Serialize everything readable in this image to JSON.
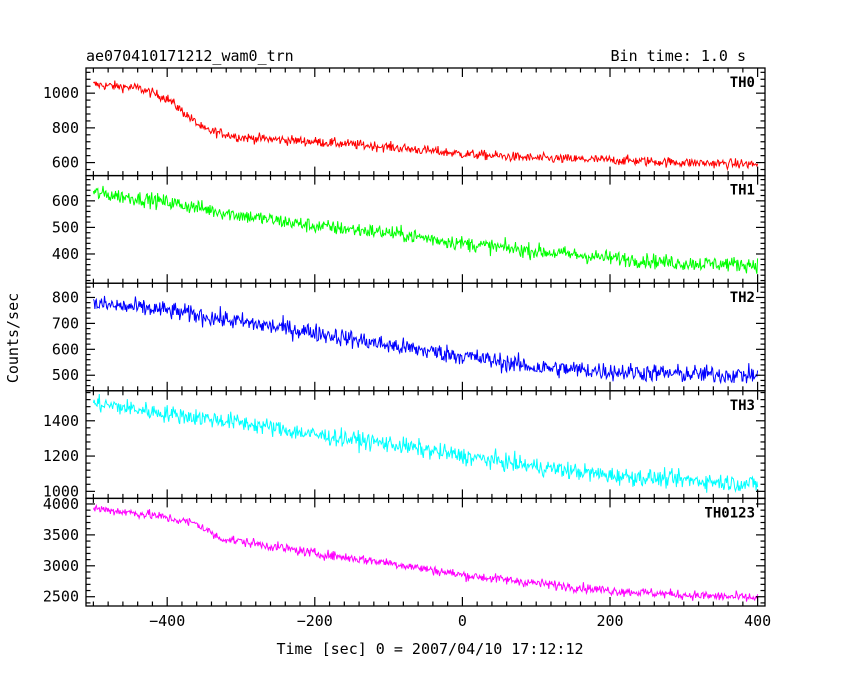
{
  "header": {
    "title": "ae070410171212_wam0_trn",
    "bin_time": "Bin time: 1.0 s"
  },
  "chart_data": {
    "type": "line",
    "xlabel": "Time [sec] 0 = 2007/04/10 17:12:12",
    "ylabel": "Counts/sec",
    "xlim": [
      -510,
      410
    ],
    "x_ticks": [
      -400,
      -200,
      0,
      200,
      400
    ],
    "x_tick_labels": [
      "−400",
      "−200",
      "0",
      "200",
      "400"
    ],
    "x_range": [
      -500,
      400
    ],
    "bin_time_s": 1.0,
    "panels": [
      {
        "name": "TH0",
        "color": "#ff0000",
        "ylim": [
          525,
          1145
        ],
        "y_ticks": [
          600,
          800,
          1000
        ],
        "noise": 20,
        "trend": [
          [
            -500,
            1050
          ],
          [
            -440,
            1030
          ],
          [
            -400,
            970
          ],
          [
            -350,
            790
          ],
          [
            -300,
            745
          ],
          [
            -200,
            720
          ],
          [
            -100,
            690
          ],
          [
            0,
            650
          ],
          [
            100,
            625
          ],
          [
            200,
            615
          ],
          [
            300,
            600
          ],
          [
            400,
            590
          ]
        ]
      },
      {
        "name": "TH1",
        "color": "#00ff00",
        "ylim": [
          290,
          695
        ],
        "y_ticks": [
          400,
          500,
          600
        ],
        "noise": 20,
        "trend": [
          [
            -500,
            630
          ],
          [
            -400,
            595
          ],
          [
            -300,
            545
          ],
          [
            -200,
            505
          ],
          [
            -100,
            480
          ],
          [
            0,
            440
          ],
          [
            100,
            410
          ],
          [
            200,
            385
          ],
          [
            300,
            365
          ],
          [
            400,
            360
          ]
        ]
      },
      {
        "name": "TH2",
        "color": "#0000ff",
        "ylim": [
          440,
          855
        ],
        "y_ticks": [
          500,
          600,
          700,
          800
        ],
        "noise": 25,
        "trend": [
          [
            -500,
            775
          ],
          [
            -400,
            750
          ],
          [
            -300,
            705
          ],
          [
            -200,
            665
          ],
          [
            -100,
            615
          ],
          [
            0,
            575
          ],
          [
            100,
            530
          ],
          [
            200,
            515
          ],
          [
            300,
            505
          ],
          [
            400,
            500
          ]
        ]
      },
      {
        "name": "TH3",
        "color": "#00ffff",
        "ylim": [
          960,
          1570
        ],
        "y_ticks": [
          1000,
          1200,
          1400
        ],
        "noise": 35,
        "trend": [
          [
            -500,
            1500
          ],
          [
            -400,
            1440
          ],
          [
            -300,
            1390
          ],
          [
            -200,
            1320
          ],
          [
            -100,
            1270
          ],
          [
            0,
            1200
          ],
          [
            100,
            1140
          ],
          [
            200,
            1090
          ],
          [
            300,
            1065
          ],
          [
            400,
            1040
          ]
        ]
      },
      {
        "name": "TH0123",
        "color": "#ff00ff",
        "ylim": [
          2350,
          4090
        ],
        "y_ticks": [
          2500,
          3000,
          3500,
          4000
        ],
        "noise": 55,
        "trend": [
          [
            -500,
            3930
          ],
          [
            -420,
            3820
          ],
          [
            -360,
            3680
          ],
          [
            -330,
            3450
          ],
          [
            -250,
            3300
          ],
          [
            -200,
            3200
          ],
          [
            -100,
            3050
          ],
          [
            0,
            2850
          ],
          [
            100,
            2720
          ],
          [
            200,
            2600
          ],
          [
            300,
            2530
          ],
          [
            400,
            2480
          ]
        ]
      }
    ]
  }
}
